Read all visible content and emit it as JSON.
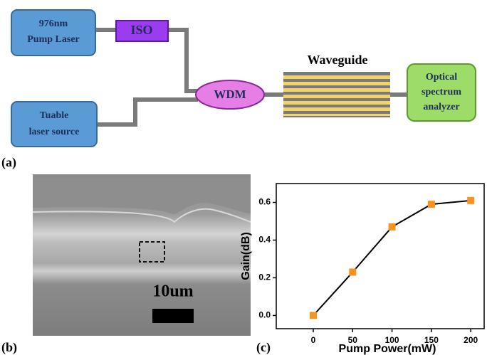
{
  "diagram": {
    "nodes": [
      {
        "lines": [
          "976nm",
          "Pump Laser"
        ]
      },
      {
        "lines": [
          "ISO"
        ]
      },
      {
        "lines": [
          "Tuable",
          "laser source"
        ]
      },
      {
        "lines": [
          "WDM"
        ]
      },
      {
        "lines": [
          "Waveguide"
        ]
      },
      {
        "lines": [
          "Optical",
          "spectrum",
          "analyzer"
        ]
      }
    ]
  },
  "panel_labels": [
    "(a)",
    "(b)",
    "(c)"
  ],
  "image": {
    "scale_label": "10um"
  },
  "chart_data": {
    "type": "line",
    "x": [
      0,
      50,
      100,
      150,
      200
    ],
    "values": [
      0.0,
      0.23,
      0.47,
      0.59,
      0.61
    ],
    "color": "#f7931e",
    "line_color": "#000000",
    "xlabel": "Pump Power(mW)",
    "ylabel": "Gain(dB)",
    "xlim": [
      -47,
      217
    ],
    "ylim": [
      -0.07,
      0.7
    ],
    "xticks": [
      0,
      50,
      100,
      150,
      200
    ],
    "yticks": [
      {
        "value": 0,
        "label": "0.0"
      },
      0.2,
      0.4,
      0.6
    ]
  }
}
